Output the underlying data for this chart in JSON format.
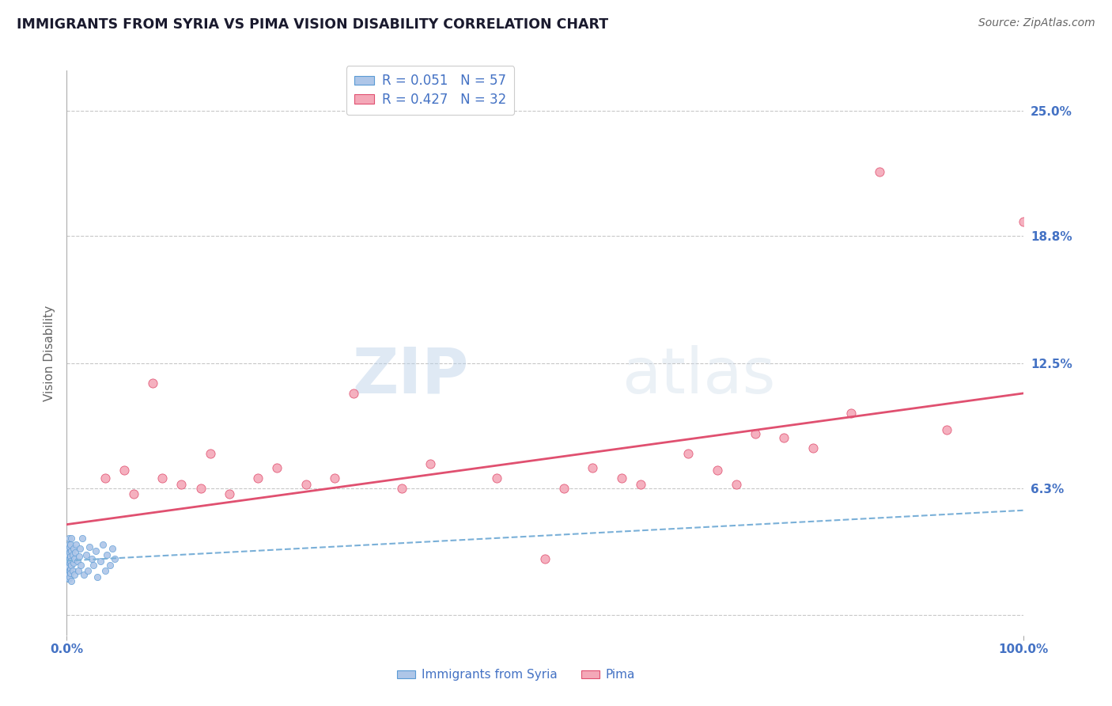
{
  "title": "IMMIGRANTS FROM SYRIA VS PIMA VISION DISABILITY CORRELATION CHART",
  "source": "Source: ZipAtlas.com",
  "ylabel": "Vision Disability",
  "xlim": [
    0.0,
    1.0
  ],
  "ylim": [
    -0.01,
    0.27
  ],
  "R_blue": 0.051,
  "N_blue": 57,
  "R_pink": 0.427,
  "N_pink": 32,
  "blue_color": "#aec6e8",
  "pink_color": "#f4a8b8",
  "blue_edge_color": "#5b9bd5",
  "pink_edge_color": "#e05070",
  "blue_line_color": "#7ab0d8",
  "pink_line_color": "#e05070",
  "background_color": "#ffffff",
  "grid_color": "#c8c8c8",
  "title_color": "#1a1a2e",
  "label_color": "#4472c4",
  "source_color": "#666666",
  "watermark_color": "#d0dff0",
  "blue_x": [
    0.001,
    0.001,
    0.001,
    0.001,
    0.001,
    0.002,
    0.002,
    0.002,
    0.002,
    0.002,
    0.002,
    0.002,
    0.002,
    0.003,
    0.003,
    0.003,
    0.003,
    0.003,
    0.003,
    0.004,
    0.004,
    0.004,
    0.004,
    0.004,
    0.005,
    0.005,
    0.005,
    0.005,
    0.006,
    0.006,
    0.007,
    0.007,
    0.008,
    0.008,
    0.009,
    0.01,
    0.011,
    0.012,
    0.013,
    0.014,
    0.015,
    0.016,
    0.018,
    0.02,
    0.022,
    0.024,
    0.026,
    0.028,
    0.03,
    0.032,
    0.035,
    0.038,
    0.04,
    0.042,
    0.045,
    0.048,
    0.05
  ],
  "blue_y": [
    0.028,
    0.022,
    0.018,
    0.032,
    0.025,
    0.03,
    0.035,
    0.02,
    0.027,
    0.033,
    0.018,
    0.024,
    0.038,
    0.022,
    0.028,
    0.034,
    0.019,
    0.031,
    0.026,
    0.023,
    0.029,
    0.035,
    0.021,
    0.027,
    0.032,
    0.017,
    0.025,
    0.038,
    0.03,
    0.022,
    0.026,
    0.033,
    0.028,
    0.02,
    0.031,
    0.035,
    0.027,
    0.022,
    0.029,
    0.033,
    0.025,
    0.038,
    0.02,
    0.03,
    0.022,
    0.034,
    0.028,
    0.025,
    0.032,
    0.019,
    0.027,
    0.035,
    0.022,
    0.03,
    0.025,
    0.033,
    0.028
  ],
  "pink_x": [
    0.04,
    0.06,
    0.07,
    0.09,
    0.1,
    0.12,
    0.14,
    0.15,
    0.17,
    0.2,
    0.22,
    0.25,
    0.28,
    0.3,
    0.35,
    0.38,
    0.45,
    0.5,
    0.52,
    0.55,
    0.58,
    0.6,
    0.65,
    0.68,
    0.7,
    0.72,
    0.75,
    0.78,
    0.82,
    0.85,
    0.92,
    1.0
  ],
  "pink_y": [
    0.068,
    0.072,
    0.06,
    0.115,
    0.068,
    0.065,
    0.063,
    0.08,
    0.06,
    0.068,
    0.073,
    0.065,
    0.068,
    0.11,
    0.063,
    0.075,
    0.068,
    0.028,
    0.063,
    0.073,
    0.068,
    0.065,
    0.08,
    0.072,
    0.065,
    0.09,
    0.088,
    0.083,
    0.1,
    0.22,
    0.092,
    0.195
  ],
  "blue_trend_x": [
    0.0,
    1.0
  ],
  "blue_trend_y": [
    0.027,
    0.052
  ],
  "pink_trend_x": [
    0.0,
    1.0
  ],
  "pink_trend_y": [
    0.045,
    0.11
  ]
}
